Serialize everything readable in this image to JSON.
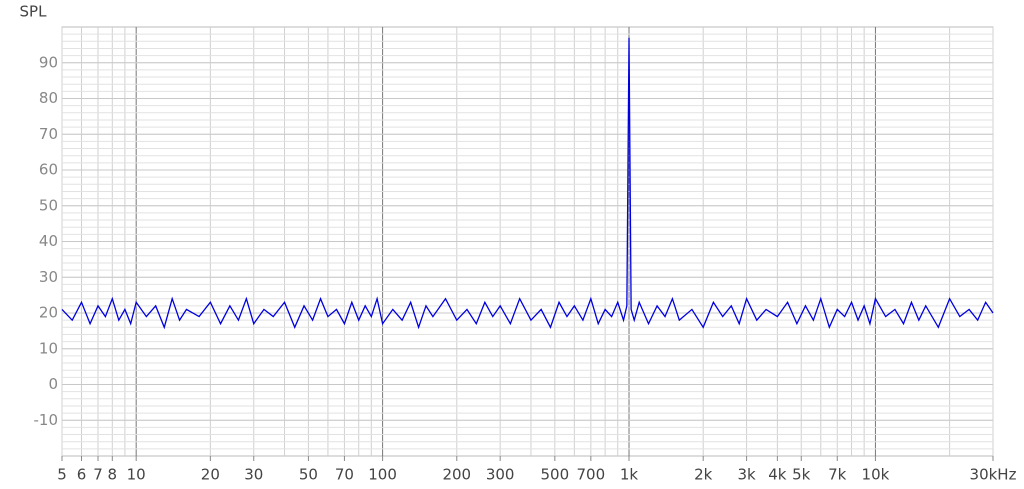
{
  "chart_data": {
    "type": "line",
    "y_label": "SPL",
    "xscale": "log",
    "grid": true,
    "xlim": [
      5,
      30000
    ],
    "ylim": [
      -20,
      100
    ],
    "xticks": [
      {
        "value": 5,
        "label": "5"
      },
      {
        "value": 6,
        "label": "6"
      },
      {
        "value": 7,
        "label": "7"
      },
      {
        "value": 8,
        "label": "8"
      },
      {
        "value": 10,
        "label": "10"
      },
      {
        "value": 20,
        "label": "20"
      },
      {
        "value": 30,
        "label": "30"
      },
      {
        "value": 50,
        "label": "50"
      },
      {
        "value": 70,
        "label": "70"
      },
      {
        "value": 100,
        "label": "100"
      },
      {
        "value": 200,
        "label": "200"
      },
      {
        "value": 300,
        "label": "300"
      },
      {
        "value": 500,
        "label": "500"
      },
      {
        "value": 700,
        "label": "700"
      },
      {
        "value": 1000,
        "label": "1k"
      },
      {
        "value": 2000,
        "label": "2k"
      },
      {
        "value": 3000,
        "label": "3k"
      },
      {
        "value": 4000,
        "label": "4k"
      },
      {
        "value": 5000,
        "label": "5k"
      },
      {
        "value": 7000,
        "label": "7k"
      },
      {
        "value": 10000,
        "label": "10k"
      },
      {
        "value": 30000,
        "label": "30kHz"
      }
    ],
    "yticks": [
      90,
      80,
      70,
      60,
      50,
      40,
      30,
      20,
      10,
      0,
      -10
    ],
    "x": [
      5,
      5.5,
      6,
      6.5,
      7,
      7.5,
      8,
      8.5,
      9,
      9.5,
      10,
      11,
      12,
      13,
      14,
      15,
      16,
      18,
      20,
      22,
      24,
      26,
      28,
      30,
      33,
      36,
      40,
      44,
      48,
      52,
      56,
      60,
      65,
      70,
      75,
      80,
      85,
      90,
      95,
      100,
      110,
      120,
      130,
      140,
      150,
      160,
      180,
      200,
      220,
      240,
      260,
      280,
      300,
      330,
      360,
      400,
      440,
      480,
      520,
      560,
      600,
      650,
      700,
      750,
      800,
      850,
      900,
      950,
      980,
      1000,
      1020,
      1050,
      1100,
      1200,
      1300,
      1400,
      1500,
      1600,
      1800,
      2000,
      2200,
      2400,
      2600,
      2800,
      3000,
      3300,
      3600,
      4000,
      4400,
      4800,
      5200,
      5600,
      6000,
      6500,
      7000,
      7500,
      8000,
      8500,
      9000,
      9500,
      10000,
      11000,
      12000,
      13000,
      14000,
      15000,
      16000,
      18000,
      20000,
      22000,
      24000,
      26000,
      28000,
      30000
    ],
    "series": [
      {
        "color": "#0000e0",
        "values": [
          21,
          18,
          23,
          17,
          22,
          19,
          24,
          18,
          21,
          17,
          23,
          19,
          22,
          16,
          24,
          18,
          21,
          19,
          23,
          17,
          22,
          18,
          24,
          17,
          21,
          19,
          23,
          16,
          22,
          18,
          24,
          19,
          21,
          17,
          23,
          18,
          22,
          19,
          24,
          17,
          21,
          18,
          23,
          16,
          22,
          19,
          24,
          18,
          21,
          17,
          23,
          19,
          22,
          17,
          24,
          18,
          21,
          16,
          23,
          19,
          22,
          18,
          24,
          17,
          21,
          19,
          23,
          18,
          22,
          97,
          21,
          18,
          23,
          17,
          22,
          19,
          24,
          18,
          21,
          16,
          23,
          19,
          22,
          17,
          24,
          18,
          21,
          19,
          23,
          17,
          22,
          18,
          24,
          16,
          21,
          19,
          23,
          18,
          22,
          17,
          24,
          19,
          21,
          17,
          23,
          18,
          22,
          16,
          24,
          19,
          21,
          18,
          23,
          20
        ]
      }
    ]
  }
}
